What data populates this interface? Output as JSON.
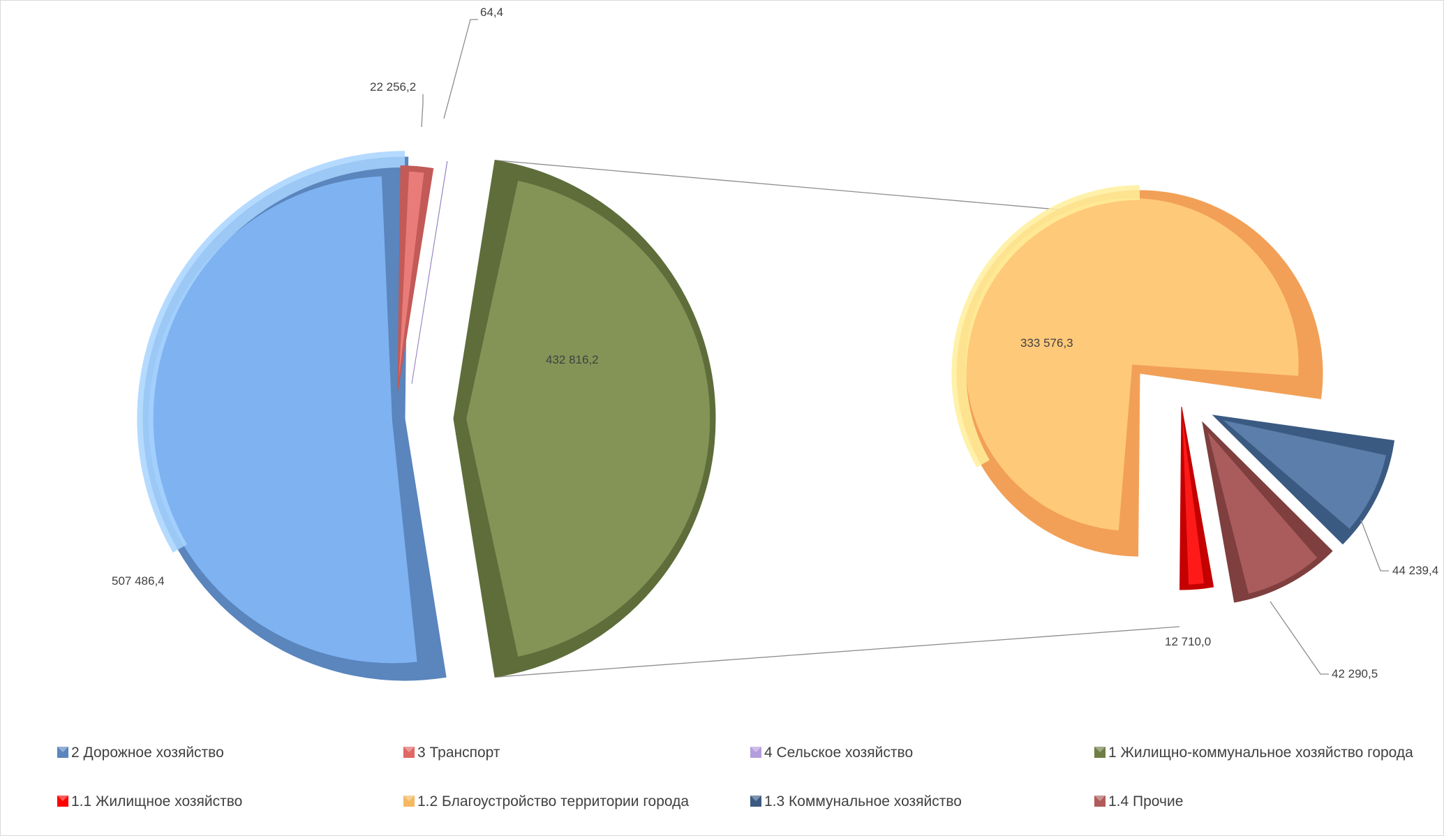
{
  "chart_data": {
    "type": "pie",
    "subtype": "pie-of-pie",
    "title": "",
    "slices": [
      {
        "label": "2 Дорожное хозяйство",
        "value": 507486.4,
        "value_label": "507 486,4",
        "color": "#7fb2f0",
        "dark": "#5a85bd",
        "light": "#a8d3ff"
      },
      {
        "label": "3 Транспорт",
        "value": 22256.2,
        "value_label": "22 256,2",
        "color": "#e97b78",
        "dark": "#c25a57",
        "light": "#ffa6a3"
      },
      {
        "label": "4 Сельское хозяйство",
        "value": 64.4,
        "value_label": "64,4",
        "color": "#b49ddc",
        "dark": "#8f76bd",
        "light": "#d7c8f2"
      },
      {
        "label": "1 Жилищно-коммунальное  хозяйство города",
        "value": 432816.2,
        "value_label": "432 816,2",
        "color": "#849457",
        "dark": "#5e6d3a",
        "light": "#a9b77d"
      }
    ],
    "secondary": {
      "parent": "1 Жилищно-коммунальное  хозяйство города",
      "slices": [
        {
          "label": "1.1 Жилищное хозяйство",
          "value": 12710.0,
          "value_label": "12 710,0",
          "color": "#ff1a1a",
          "dark": "#c40000",
          "light": "#ff7070"
        },
        {
          "label": "1.2 Благоустройство территории города",
          "value": 333576.3,
          "value_label": "333 576,3",
          "color": "#ffc97a",
          "dark": "#f2a057",
          "light": "#ffee9a"
        },
        {
          "label": "1.3 Коммунальное хозяйство",
          "value": 44239.4,
          "value_label": "44 239,4",
          "color": "#5b7faa",
          "dark": "#3b5a82",
          "light": "#86a2c6"
        },
        {
          "label": "1.4 Прочие",
          "value": 42290.5,
          "value_label": "42 290,5",
          "color": "#a95c5b",
          "dark": "#7e3f3e",
          "light": "#d98a88"
        }
      ]
    },
    "legend": {
      "position": "bottom",
      "items": [
        {
          "label": "2 Дорожное хозяйство",
          "color": "#5a85bd"
        },
        {
          "label": "3 Транспорт",
          "color": "#e06865"
        },
        {
          "label": "4 Сельское хозяйство",
          "color": "#b49ddc"
        },
        {
          "label": "1 Жилищно-коммунальное  хозяйство города",
          "color": "#6f7e44"
        },
        {
          "label": "1.1 Жилищное хозяйство",
          "color": "#ff0000"
        },
        {
          "label": "1.2 Благоустройство территории города",
          "color": "#f5b862"
        },
        {
          "label": "1.3 Коммунальное хозяйство",
          "color": "#3b5a82"
        },
        {
          "label": "1.4 Прочие",
          "color": "#b05b5a"
        }
      ]
    }
  }
}
